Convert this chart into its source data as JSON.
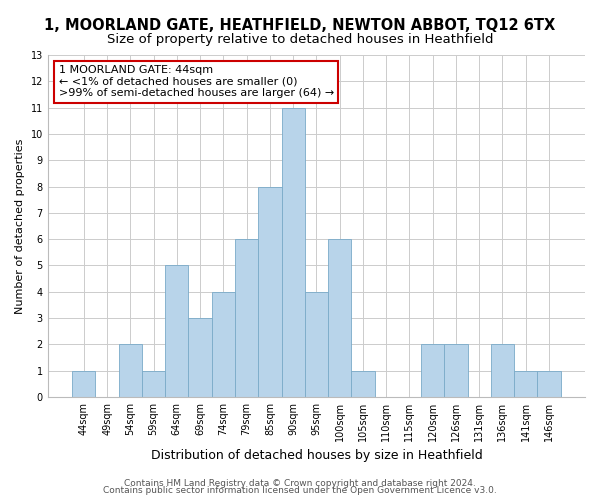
{
  "title": "1, MOORLAND GATE, HEATHFIELD, NEWTON ABBOT, TQ12 6TX",
  "subtitle": "Size of property relative to detached houses in Heathfield",
  "xlabel": "Distribution of detached houses by size in Heathfield",
  "ylabel": "Number of detached properties",
  "categories": [
    "44sqm",
    "49sqm",
    "54sqm",
    "59sqm",
    "64sqm",
    "69sqm",
    "74sqm",
    "79sqm",
    "85sqm",
    "90sqm",
    "95sqm",
    "100sqm",
    "105sqm",
    "110sqm",
    "115sqm",
    "120sqm",
    "126sqm",
    "131sqm",
    "136sqm",
    "141sqm",
    "146sqm"
  ],
  "values": [
    1,
    0,
    2,
    1,
    5,
    3,
    4,
    6,
    8,
    11,
    4,
    6,
    1,
    0,
    0,
    2,
    2,
    0,
    2,
    1,
    1
  ],
  "bar_color": "#b8d4ea",
  "bar_edge_color": "#7aaac8",
  "ylim": [
    0,
    13
  ],
  "yticks": [
    0,
    1,
    2,
    3,
    4,
    5,
    6,
    7,
    8,
    9,
    10,
    11,
    12,
    13
  ],
  "annotation_title": "1 MOORLAND GATE: 44sqm",
  "annotation_line1": "← <1% of detached houses are smaller (0)",
  "annotation_line2": ">99% of semi-detached houses are larger (64) →",
  "annotation_box_color": "#ffffff",
  "annotation_box_edge": "#cc0000",
  "footer1": "Contains HM Land Registry data © Crown copyright and database right 2024.",
  "footer2": "Contains public sector information licensed under the Open Government Licence v3.0.",
  "bg_color": "#ffffff",
  "grid_color": "#cccccc",
  "title_fontsize": 10.5,
  "subtitle_fontsize": 9.5,
  "xlabel_fontsize": 9,
  "ylabel_fontsize": 8,
  "tick_fontsize": 7,
  "annotation_fontsize": 8,
  "footer_fontsize": 6.5
}
